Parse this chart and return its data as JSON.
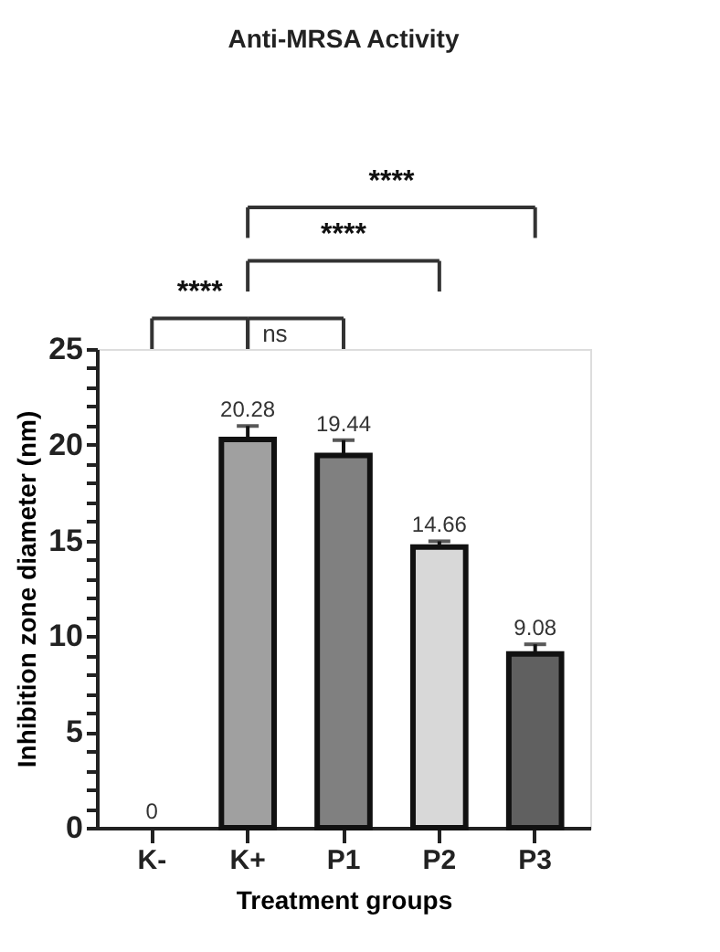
{
  "chart_data": {
    "type": "bar",
    "title": "Anti-MRSA Activity",
    "xlabel": "Treatment groups",
    "ylabel": "Inhibition zone diameter (nm)",
    "categories": [
      "K-",
      "K+",
      "P1",
      "P2",
      "P3"
    ],
    "values": [
      0,
      20.28,
      19.44,
      14.66,
      9.08
    ],
    "colors": [
      "#ffffff",
      "#a0a0a0",
      "#808080",
      "#d8d8d8",
      "#606060"
    ],
    "errors": [
      null,
      0.7,
      0.8,
      0.3,
      0.5
    ],
    "data_labels": true,
    "ylim": [
      0,
      25
    ],
    "yticks": [
      0,
      {
        "value": 1,
        "label": null
      },
      {
        "value": 2,
        "label": null
      },
      {
        "value": 3,
        "label": null
      },
      {
        "value": 4,
        "label": null
      },
      5,
      {
        "value": 6,
        "label": null
      },
      {
        "value": 7,
        "label": null
      },
      {
        "value": 8,
        "label": null
      },
      {
        "value": 9,
        "label": null
      },
      10,
      {
        "value": 11,
        "label": null
      },
      {
        "value": 12,
        "label": null
      },
      {
        "value": 13,
        "label": null
      },
      {
        "value": 14,
        "label": null
      },
      15,
      {
        "value": 16,
        "label": null
      },
      {
        "value": 17,
        "label": null
      },
      {
        "value": 18,
        "label": null
      },
      {
        "value": 19,
        "label": null
      },
      20,
      {
        "value": 21,
        "label": null
      },
      {
        "value": 22,
        "label": null
      },
      {
        "value": 23,
        "label": null
      },
      {
        "value": 24,
        "label": null
      },
      25
    ],
    "annotations": [
      "****",
      "ns",
      "****",
      "****"
    ],
    "grid": false
  }
}
